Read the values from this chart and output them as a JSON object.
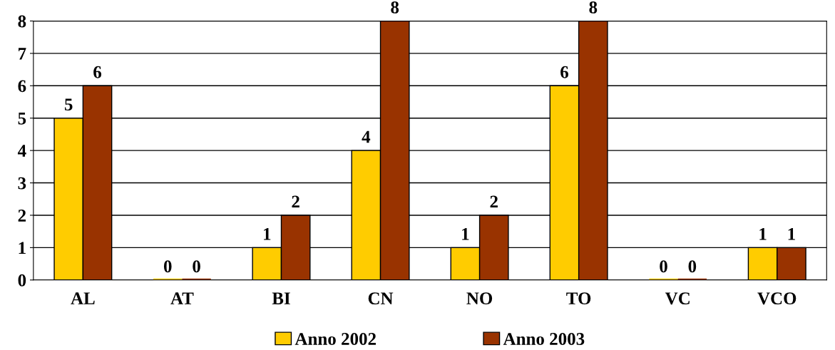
{
  "chart_data": {
    "type": "bar",
    "categories": [
      "AL",
      "AT",
      "BI",
      "CN",
      "NO",
      "TO",
      "VC",
      "VCO"
    ],
    "series": [
      {
        "name": "Anno 2002",
        "color": "#ffcc00",
        "values": [
          5,
          0,
          1,
          4,
          1,
          6,
          0,
          1
        ]
      },
      {
        "name": "Anno 2003",
        "color": "#993300",
        "values": [
          6,
          0,
          2,
          8,
          2,
          8,
          0,
          1
        ]
      }
    ],
    "ylim": [
      0,
      8
    ],
    "yticks": [
      0,
      1,
      2,
      3,
      4,
      5,
      6,
      7,
      8
    ],
    "grid": "y",
    "legend": "bottom",
    "data_labels": true
  }
}
